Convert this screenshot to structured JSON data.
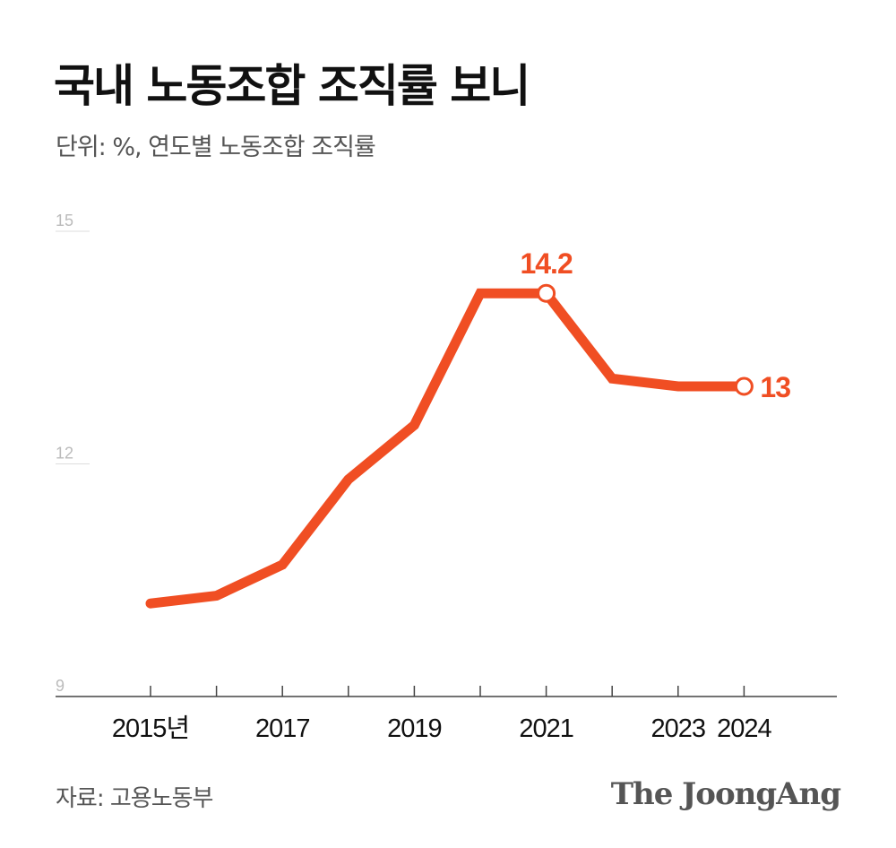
{
  "title": "국내 노동조합 조직률 보니",
  "subtitle": "단위: %, 연도별 노동조합 조직률",
  "source": "자료: 고용노동부",
  "logo": "The JoongAng",
  "colors": {
    "line": "#F04E23",
    "axis": "#444444",
    "grid": "#dddddd",
    "tick_text": "#bbbbbb"
  },
  "chart_data": {
    "type": "line",
    "x": [
      2015,
      2016,
      2017,
      2018,
      2019,
      2020,
      2021,
      2022,
      2023,
      2024
    ],
    "values": [
      10.2,
      10.3,
      10.7,
      11.8,
      12.5,
      14.2,
      14.2,
      13.1,
      13.0,
      13.0
    ],
    "ylim": [
      9,
      15
    ],
    "yticks": [
      "15",
      "12",
      "9"
    ],
    "ytick_values": [
      15,
      12,
      9
    ],
    "xtick_labels": [
      {
        "year": 2015,
        "label": "2015년"
      },
      {
        "year": 2017,
        "label": "2017"
      },
      {
        "year": 2019,
        "label": "2019"
      },
      {
        "year": 2021,
        "label": "2021"
      },
      {
        "year": 2023,
        "label": "2023"
      },
      {
        "year": 2024,
        "label": "2024"
      }
    ],
    "annotations": [
      {
        "year": 2021,
        "value": 14.2,
        "label": "14.2",
        "position": "above"
      },
      {
        "year": 2024,
        "value": 13.0,
        "label": "13",
        "position": "right"
      }
    ]
  }
}
